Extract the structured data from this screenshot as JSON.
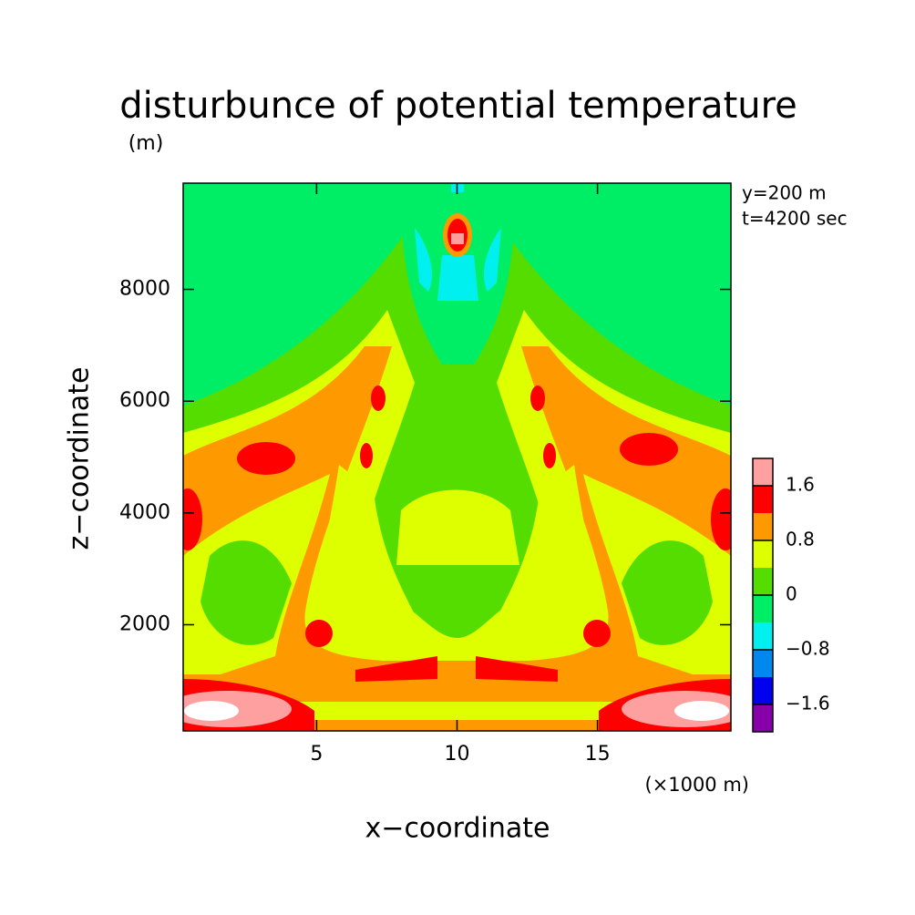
{
  "chart_data": {
    "type": "contour",
    "title": "disturbunce of potential temperature",
    "x_label": "x−coordinate",
    "x_unit": "(×1000 m)",
    "y_label": "z−coordinate",
    "y_unit": "(m)",
    "annotations": [
      "y=200 m",
      "t=4200 sec"
    ],
    "xlim": [
      0.25,
      19.75
    ],
    "xticks": [
      5,
      10,
      15
    ],
    "ylim": [
      100,
      9900
    ],
    "yticks": [
      2000,
      4000,
      6000,
      8000
    ],
    "colorbar": {
      "clim": [
        -2.0,
        2.0
      ],
      "colors": [
        "#8800aa",
        "#0000ee",
        "#0088ee",
        "#00f0f0",
        "#00ee66",
        "#55dd00",
        "#ddff00",
        "#ff9900",
        "#ff0000",
        "#ffa0a0"
      ],
      "ticks": [
        {
          "value": -1.6,
          "label": "−1.6"
        },
        {
          "value": -0.8,
          "label": "−0.8"
        },
        0,
        0.8,
        1.6
      ]
    }
  }
}
